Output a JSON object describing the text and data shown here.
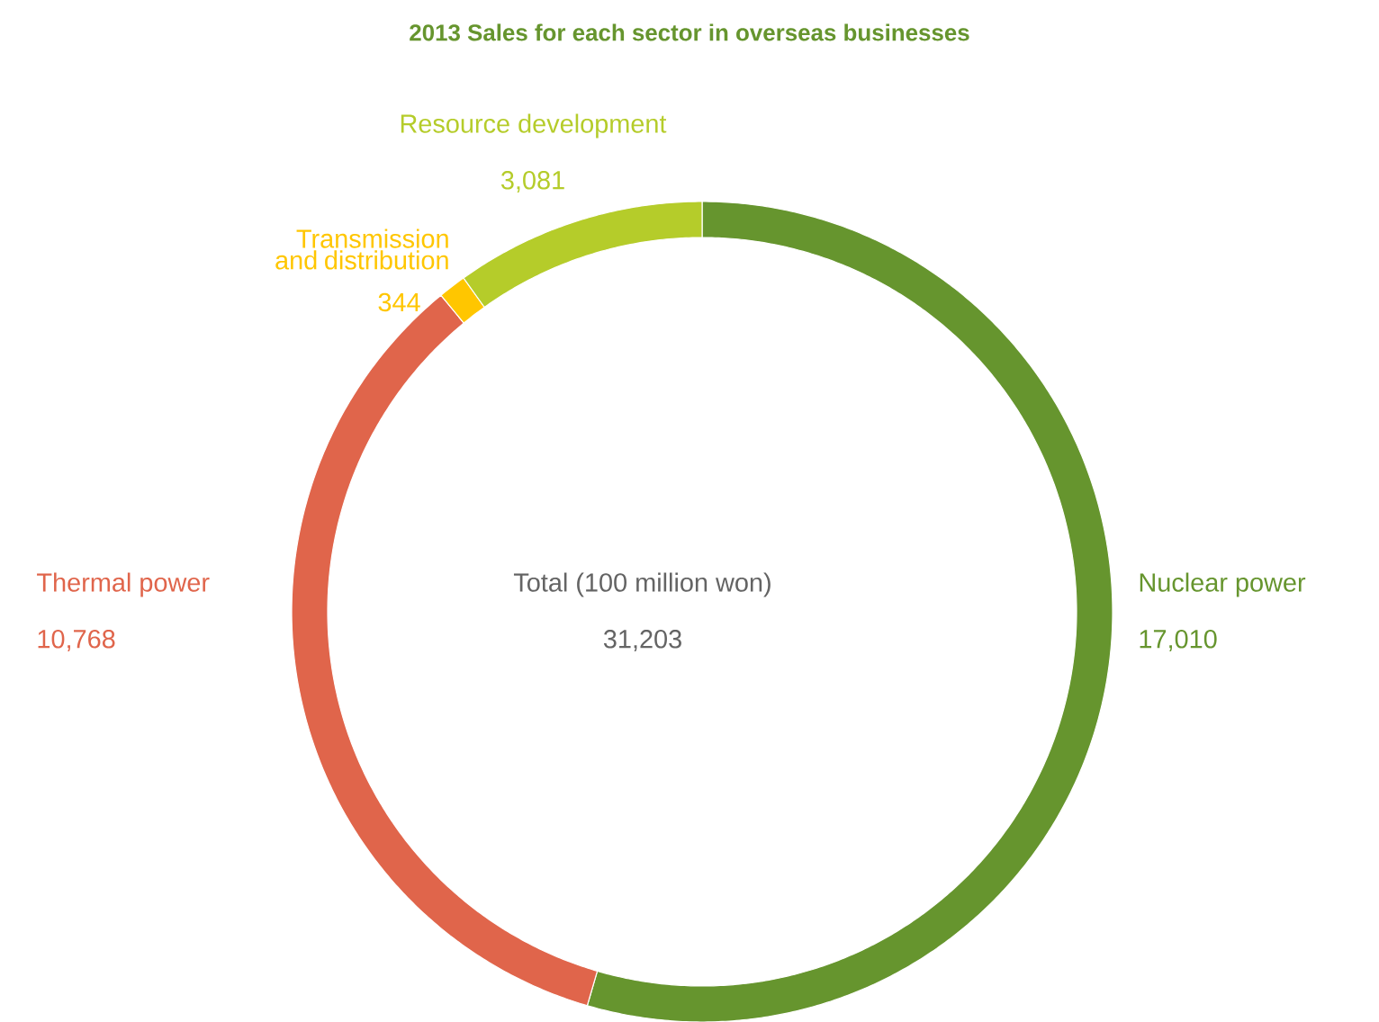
{
  "chart_data": {
    "type": "donut",
    "title": "2013 Sales for each sector in overseas businesses",
    "categories": [
      "Nuclear power",
      "Thermal power",
      "Transmission and distribution",
      "Resource development"
    ],
    "values": [
      17010,
      10768,
      344,
      3081
    ],
    "colors": [
      "#66952e",
      "#e0654b",
      "#ffc600",
      "#b5cc2a"
    ],
    "value_labels": [
      "17,010",
      "10,768",
      "344",
      "3,081"
    ],
    "annotations": [
      "Total (100 million won)",
      "31,203"
    ]
  }
}
